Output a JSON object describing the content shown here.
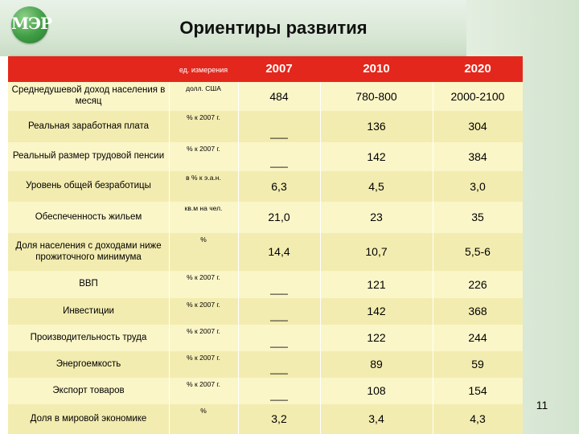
{
  "header": {
    "logo_text": "МЭР",
    "title": "Ориентиры развития"
  },
  "table": {
    "columns": {
      "unit": "ед. измерения",
      "years": [
        "2007",
        "2010",
        "2020"
      ]
    },
    "rows": [
      {
        "label": "Среднедушевой доход населения в месяц",
        "unit": "долл. США",
        "v2007": "484",
        "v2010": "780-800",
        "v2020": "2000-2100"
      },
      {
        "label": "Реальная заработная плата",
        "unit": "% к 2007 г.",
        "v2007": "___",
        "v2010": "136",
        "v2020": "304"
      },
      {
        "label": "Реальный размер трудовой пенсии",
        "unit": "% к 2007 г.",
        "v2007": "___",
        "v2010": "142",
        "v2020": "384"
      },
      {
        "label": "Уровень общей безработицы",
        "unit": "в % к э.а.н.",
        "v2007": "6,3",
        "v2010": "4,5",
        "v2020": "3,0"
      },
      {
        "label": "Обеспеченность жильем",
        "unit": "кв.м на чел.",
        "v2007": "21,0",
        "v2010": "23",
        "v2020": "35"
      },
      {
        "label": "Доля населения с доходами ниже прожиточного минимума",
        "unit": "%",
        "v2007": "14,4",
        "v2010": "10,7",
        "v2020": "5,5-6"
      },
      {
        "label": "ВВП",
        "unit": "% к 2007 г.",
        "v2007": "___",
        "v2010": "121",
        "v2020": "226"
      },
      {
        "label": "Инвестиции",
        "unit": "% к 2007 г.",
        "v2007": "___",
        "v2010": "142",
        "v2020": "368"
      },
      {
        "label": "Производительность труда",
        "unit": "% к 2007 г.",
        "v2007": "___",
        "v2010": "122",
        "v2020": "244"
      },
      {
        "label": "Энергоемкость",
        "unit": "% к 2007 г.",
        "v2007": "___",
        "v2010": "89",
        "v2020": "59"
      },
      {
        "label": "Экспорт товаров",
        "unit": "% к 2007 г.",
        "v2007": "___",
        "v2010": "108",
        "v2020": "154"
      },
      {
        "label": "Доля в мировой экономике",
        "unit": "%",
        "v2007": "3,2",
        "v2010": "3,4",
        "v2020": "4,3"
      }
    ]
  },
  "footer": {
    "page_number": "11"
  },
  "colors": {
    "header_red": "#e4271c",
    "table_bg": "#fbf6c8",
    "header_green": "#d9e8d6"
  }
}
